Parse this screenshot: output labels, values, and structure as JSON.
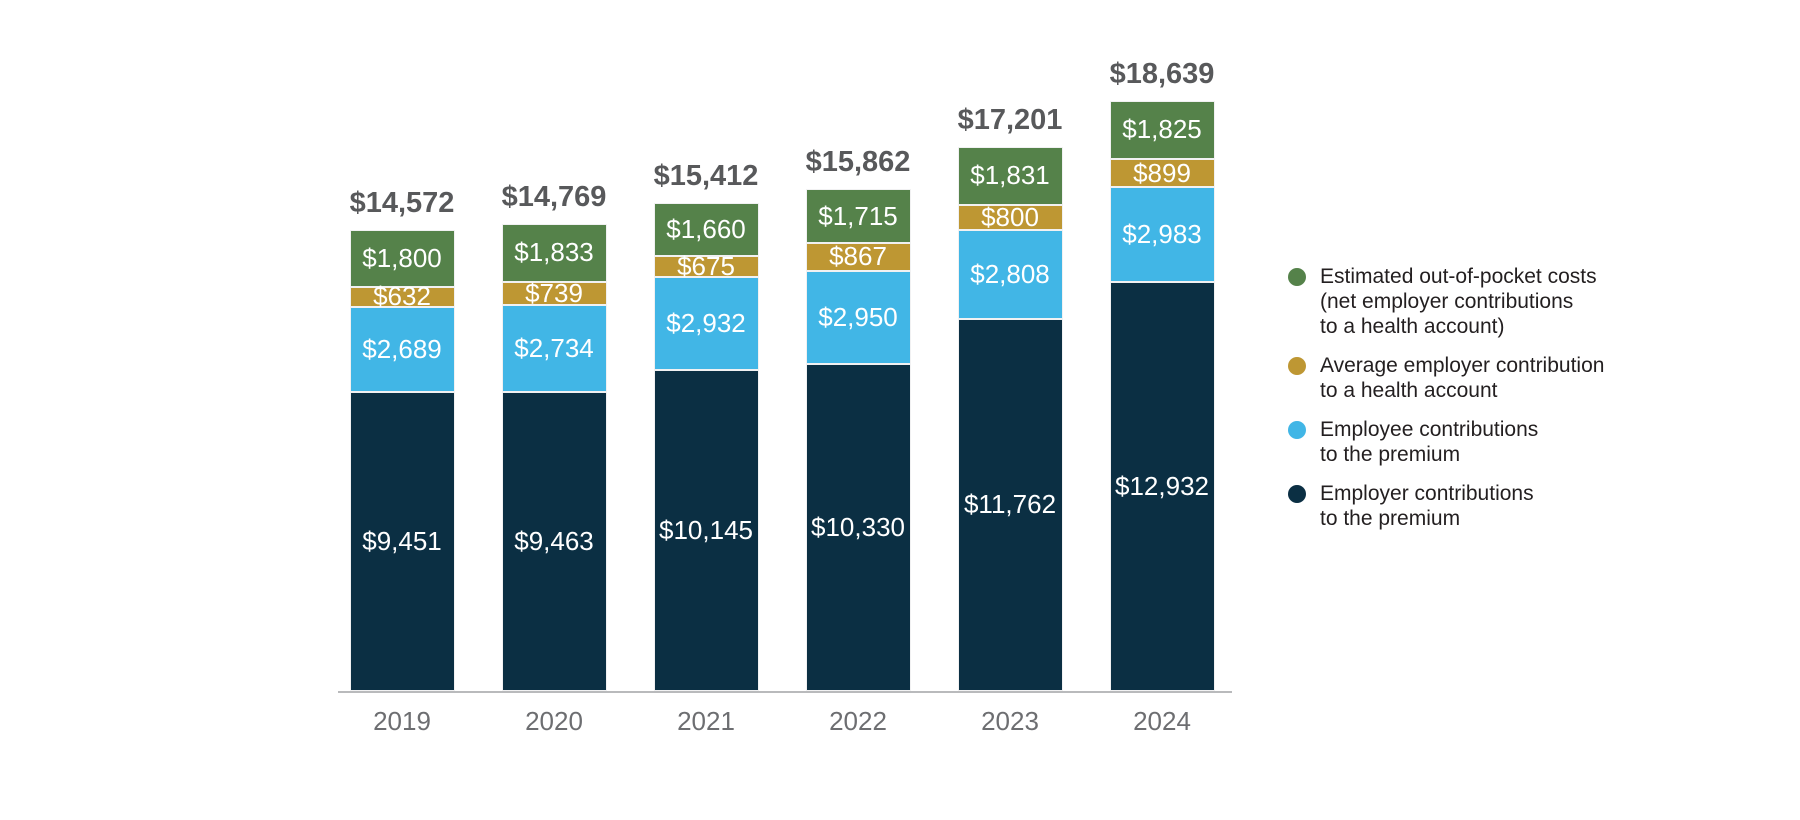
{
  "chart_data": {
    "type": "bar",
    "stacked": true,
    "categories": [
      "2019",
      "2020",
      "2021",
      "2022",
      "2023",
      "2024"
    ],
    "series": [
      {
        "name": "Employer contributions to the premium",
        "color": "#0b2f43",
        "values": [
          9451,
          9463,
          10145,
          10330,
          11762,
          12932
        ]
      },
      {
        "name": "Employee contributions to the premium",
        "color": "#41b6e6",
        "values": [
          2689,
          2734,
          2932,
          2950,
          2808,
          2983
        ]
      },
      {
        "name": "Average employer contribution to a health account",
        "color": "#be9733",
        "values": [
          632,
          739,
          675,
          867,
          800,
          899
        ]
      },
      {
        "name": "Estimated out-of-pocket costs (net employer contributions to a health account)",
        "color": "#55824a",
        "values": [
          1800,
          1833,
          1660,
          1715,
          1831,
          1825
        ]
      }
    ],
    "totals": [
      14572,
      14769,
      15412,
      15862,
      17201,
      18639
    ],
    "total_labels": [
      "$14,572",
      "$14,769",
      "$15,412",
      "$15,862",
      "$17,201",
      "$18,639"
    ],
    "legend": [
      {
        "color": "#55824a",
        "text": "Estimated out-of-pocket costs\n(net employer contributions\nto a health account)"
      },
      {
        "color": "#be9733",
        "text": "Average employer contribution\nto a health account"
      },
      {
        "color": "#41b6e6",
        "text": "Employee contributions\nto the premium"
      },
      {
        "color": "#0b2f43",
        "text": "Employer contributions\nto the premium"
      }
    ],
    "value_prefix": "$",
    "xlabel": "",
    "ylabel": "",
    "ylim": [
      0,
      20000
    ],
    "grid": false,
    "y_axis_visible": false,
    "legend_position": "right",
    "colors": {
      "total_label": "#58595b",
      "year_label": "#6d6e71",
      "segment_label": "#ffffff",
      "axis_line": "#b9babc",
      "legend_text": "#231f20",
      "background": "#ffffff"
    }
  }
}
